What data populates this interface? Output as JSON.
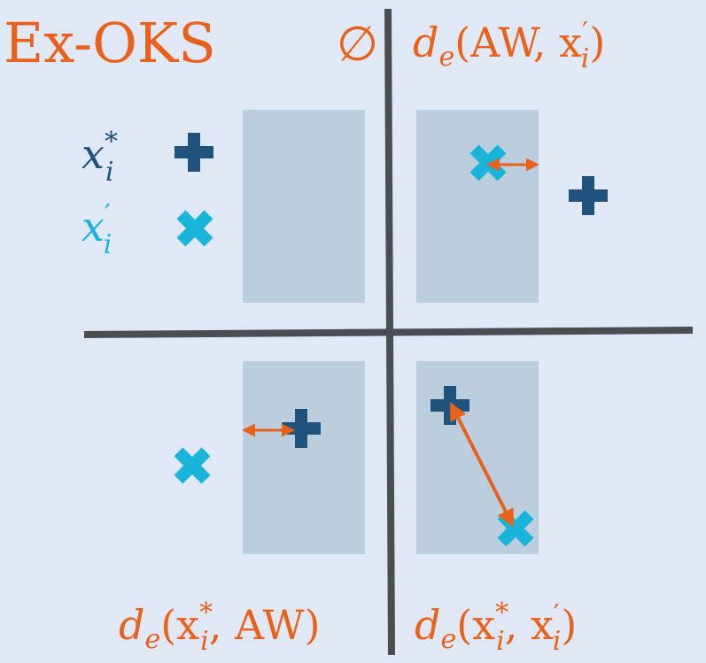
{
  "colors": {
    "background": "#dfe8f4",
    "box": "#bccede",
    "axis": "#4a4d52",
    "accent": "#e8621c",
    "dark_blue": "#1f527d",
    "cyan": "#19b4d9"
  },
  "title": "Ex-OKS",
  "quadrants": {
    "top_left": {
      "label": "∅"
    },
    "top_right": {
      "label_fn": "d",
      "label_sub": "e",
      "label_args": "(AW, x",
      "label_prime": "′",
      "label_idx": "i",
      "label_close": ")"
    },
    "bottom_left": {
      "label_fn": "d",
      "label_sub": "e",
      "label_open": "(x",
      "label_sup": "*",
      "label_idx": "i",
      "label_rest": ", AW)"
    },
    "bottom_right": {
      "label_fn": "d",
      "label_sub": "e",
      "label_open": "(x",
      "label_sup": "*",
      "label_idx": "i",
      "label_mid": ", x",
      "label_prime": "′",
      "label_idx2": "i",
      "label_close": ")"
    }
  },
  "legend": [
    {
      "symbol": "x",
      "superscript": "*",
      "subscript": "i",
      "marker": "plus-icon",
      "color": "#1f527d"
    },
    {
      "symbol": "x",
      "superscript": "′",
      "subscript": "i",
      "marker": "cross-icon",
      "color": "#19b4d9"
    }
  ]
}
